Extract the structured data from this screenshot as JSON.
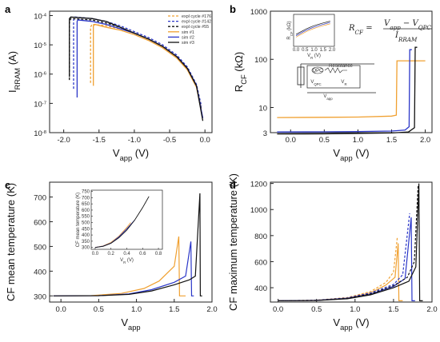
{
  "chart_data": [
    {
      "id": "a",
      "type": "line",
      "panel_label": "a",
      "xlabel": "V",
      "xlabel_sub": "app",
      "xlabel_unit": " (V)",
      "ylabel": "I",
      "ylabel_sub": "RRAM",
      "ylabel_unit": " (A)",
      "xlim": [
        -2.2,
        0.1
      ],
      "ylim_exp": [
        -8,
        -3.85
      ],
      "yscale": "log",
      "x_ticks": [
        -2.0,
        -1.5,
        -1.0,
        -0.5,
        0.0
      ],
      "x_tick_labels": [
        "-2.0",
        "-1.5",
        "-1.0",
        "-0.5",
        "0.0"
      ],
      "y_ticks_exp": [
        -8,
        -7,
        -6,
        -5,
        -4
      ],
      "y_tick_labels": [
        "10",
        "10",
        "10",
        "10",
        "10"
      ],
      "y_tick_exp_labels": [
        "-8",
        "-7",
        "-6",
        "-5",
        "-4"
      ],
      "legend": [
        {
          "label": "expl cycle #176",
          "color": "#f0a030",
          "dash": "3,2"
        },
        {
          "label": "expl cycle #142",
          "color": "#2a36c8",
          "dash": "3,2"
        },
        {
          "label": "expl cycle #55",
          "color": "#111111",
          "dash": "3,2"
        },
        {
          "label": "sim #1",
          "color": "#f0a030",
          "dash": ""
        },
        {
          "label": "sim #2",
          "color": "#2a36c8",
          "dash": ""
        },
        {
          "label": "sim #3",
          "color": "#111111",
          "dash": ""
        }
      ],
      "series": [
        {
          "color": "#f0a030",
          "dash": "3,2",
          "x": [
            -1.62,
            -1.62,
            -1.6,
            -1.4,
            -1.2,
            -1.0,
            -0.8,
            -0.6,
            -0.4,
            -0.25,
            -0.12,
            -0.05
          ],
          "y": [
            -6.3,
            -4.4,
            -4.3,
            -4.35,
            -4.45,
            -4.6,
            -4.8,
            -5.05,
            -5.4,
            -5.8,
            -6.4,
            -7.2
          ]
        },
        {
          "color": "#2a36c8",
          "dash": "3,2",
          "x": [
            -1.86,
            -1.86,
            -1.84,
            -1.6,
            -1.4,
            -1.2,
            -1.0,
            -0.8,
            -0.6,
            -0.4,
            -0.25,
            -0.12,
            -0.05
          ],
          "y": [
            -6.5,
            -4.15,
            -4.05,
            -4.1,
            -4.2,
            -4.35,
            -4.55,
            -4.75,
            -5.0,
            -5.35,
            -5.75,
            -6.35,
            -7.1
          ]
        },
        {
          "color": "#111111",
          "dash": "3,2",
          "x": [
            -1.92,
            -1.92,
            -1.9,
            -1.6,
            -1.4,
            -1.2,
            -1.0,
            -0.8,
            -0.6,
            -0.4,
            -0.25,
            -0.12,
            -0.05
          ],
          "y": [
            -6.2,
            -4.25,
            -4.1,
            -4.15,
            -4.25,
            -4.4,
            -4.6,
            -4.8,
            -5.05,
            -5.4,
            -5.8,
            -6.4,
            -7.2
          ]
        },
        {
          "color": "#f0a030",
          "dash": "",
          "x": [
            -1.58,
            -1.58,
            -1.56,
            -1.4,
            -1.2,
            -1.0,
            -0.8,
            -0.6,
            -0.4,
            -0.25,
            -0.12,
            -0.03
          ],
          "y": [
            -6.4,
            -4.35,
            -4.3,
            -4.4,
            -4.5,
            -4.65,
            -4.85,
            -5.1,
            -5.45,
            -5.85,
            -6.45,
            -7.5
          ]
        },
        {
          "color": "#2a36c8",
          "dash": "",
          "x": [
            -1.81,
            -1.81,
            -1.8,
            -1.6,
            -1.4,
            -1.2,
            -1.0,
            -0.8,
            -0.6,
            -0.4,
            -0.25,
            -0.12,
            -0.03
          ],
          "y": [
            -6.8,
            -4.2,
            -4.15,
            -4.2,
            -4.3,
            -4.45,
            -4.6,
            -4.8,
            -5.05,
            -5.4,
            -5.8,
            -6.4,
            -7.5
          ]
        },
        {
          "color": "#111111",
          "dash": "",
          "x": [
            -1.92,
            -1.92,
            -1.9,
            -1.6,
            -1.4,
            -1.2,
            -1.0,
            -0.8,
            -0.6,
            -0.4,
            -0.25,
            -0.12,
            -0.03
          ],
          "y": [
            -6.1,
            -4.1,
            -4.05,
            -4.1,
            -4.2,
            -4.4,
            -4.6,
            -4.8,
            -5.05,
            -5.4,
            -5.8,
            -6.4,
            -7.6
          ]
        }
      ]
    },
    {
      "id": "b",
      "type": "line",
      "panel_label": "b",
      "xlabel": "V",
      "xlabel_sub": "app",
      "xlabel_unit": " (V)",
      "ylabel": "R",
      "ylabel_sub": "CF",
      "ylabel_unit": " (kΩ)",
      "xlim": [
        -0.3,
        2.1
      ],
      "ylim_exp": [
        0.4771,
        3.0
      ],
      "yscale": "log",
      "x_ticks": [
        0.0,
        0.5,
        1.0,
        1.5,
        2.0
      ],
      "x_tick_labels": [
        "0.0",
        "0.5",
        "1.0",
        "1.5",
        "2.0"
      ],
      "y_ticks_exp": [
        0.4771,
        1,
        2,
        3
      ],
      "y_tick_labels": [
        "3",
        "10",
        "100",
        "1000"
      ],
      "formula_lhs": "R",
      "formula_lhs_sub": "CF",
      "formula_num": "V",
      "formula_num_sub1": "app",
      "formula_num_mid": " − V",
      "formula_num_sub2": "QPC",
      "formula_den": "I",
      "formula_den_sub": "RRAM",
      "circuit_labels": [
        "QPC",
        "Resistance",
        "V",
        "QPC",
        "V",
        "R",
        "V",
        "app"
      ],
      "inset": {
        "xlabel": "V",
        "xlabel_sub": "R",
        "xlabel_unit": " (V)",
        "ylabel": "R",
        "ylabel_sub": "CF",
        "ylabel_unit": " (kΩ)",
        "x_tick_labels": [
          "0.0",
          "0.5",
          "1.0",
          "1.5",
          "2.0"
        ]
      },
      "series": [
        {
          "color": "#f0a030",
          "dash": "",
          "x": [
            -0.2,
            0.5,
            1.0,
            1.5,
            1.57,
            1.58,
            2.0
          ],
          "y": [
            0.79,
            0.795,
            0.8,
            0.82,
            0.84,
            1.97,
            1.97
          ]
        },
        {
          "color": "#2a36c8",
          "dash": "",
          "x": [
            -0.2,
            0.5,
            1.0,
            1.5,
            1.7,
            1.76,
            1.77,
            1.8
          ],
          "y": [
            0.49,
            0.493,
            0.5,
            0.51,
            0.53,
            0.6,
            2.2,
            2.2
          ]
        },
        {
          "color": "#111111",
          "dash": "",
          "x": [
            -0.2,
            0.5,
            1.0,
            1.5,
            1.75,
            1.84,
            1.85,
            1.88
          ],
          "y": [
            0.45,
            0.453,
            0.46,
            0.47,
            0.49,
            0.58,
            2.25,
            2.25
          ]
        }
      ]
    },
    {
      "id": "c",
      "type": "line",
      "panel_label": "c",
      "xlabel": "V",
      "xlabel_sub": "app",
      "xlabel_unit": "",
      "ylabel": "CF mean temperature (K)",
      "xlim": [
        -0.15,
        2.0
      ],
      "ylim": [
        275,
        760
      ],
      "x_ticks": [
        0.0,
        0.5,
        1.0,
        1.5,
        2.0
      ],
      "x_tick_labels": [
        "0.0",
        "0.5",
        "1.0",
        "1.5",
        "2.0"
      ],
      "y_ticks": [
        300,
        400,
        500,
        600,
        700
      ],
      "y_tick_labels": [
        "300",
        "400",
        "500",
        "600",
        "700"
      ],
      "inset": {
        "ylabel": "CF mean temperature (K)",
        "xlabel": "V",
        "xlabel_sub": "R",
        "xlabel_unit": " (V)",
        "xlim": [
          -0.05,
          0.85
        ],
        "ylim": [
          285,
          760
        ],
        "x_ticks": [
          0.0,
          0.2,
          0.4,
          0.6,
          0.8
        ],
        "x_tick_labels": [
          "0.0",
          "0.2",
          "0.4",
          "0.6",
          "0.8"
        ],
        "y_ticks": [
          300,
          350,
          400,
          450,
          500,
          550,
          600,
          650,
          700,
          750
        ],
        "y_tick_labels": [
          "300",
          "350",
          "400",
          "450",
          "500",
          "550",
          "600",
          "650",
          "700",
          "750"
        ],
        "series": [
          {
            "color": "#f0a030",
            "x": [
              0.0,
              0.1,
              0.2,
              0.3,
              0.4,
              0.45
            ],
            "y": [
              300,
              312,
              340,
              390,
              460,
              500
            ]
          },
          {
            "color": "#2a36c8",
            "x": [
              0.0,
              0.1,
              0.2,
              0.3,
              0.4,
              0.5
            ],
            "y": [
              300,
              310,
              335,
              385,
              450,
              520
            ]
          },
          {
            "color": "#111111",
            "x": [
              0.0,
              0.1,
              0.2,
              0.3,
              0.4,
              0.5,
              0.6,
              0.68
            ],
            "y": [
              300,
              309,
              333,
              378,
              440,
              520,
              620,
              710
            ]
          }
        ]
      },
      "series": [
        {
          "color": "#f0a030",
          "dash": "",
          "x": [
            -0.1,
            0.4,
            0.8,
            1.1,
            1.3,
            1.5,
            1.56,
            1.57,
            1.6,
            1.65
          ],
          "y": [
            300,
            301,
            310,
            330,
            360,
            420,
            540,
            300,
            300,
            300
          ]
        },
        {
          "color": "#2a36c8",
          "dash": "",
          "x": [
            -0.1,
            0.5,
            0.9,
            1.2,
            1.5,
            1.65,
            1.72,
            1.73,
            1.76
          ],
          "y": [
            300,
            301,
            308,
            325,
            355,
            380,
            520,
            300,
            300
          ]
        },
        {
          "color": "#111111",
          "dash": "",
          "x": [
            -0.1,
            0.5,
            0.9,
            1.2,
            1.5,
            1.7,
            1.78,
            1.84,
            1.845,
            1.87
          ],
          "y": [
            300,
            301,
            306,
            320,
            345,
            365,
            380,
            715,
            300,
            300
          ]
        }
      ]
    },
    {
      "id": "d",
      "type": "line",
      "panel_label": "d",
      "xlabel": "V",
      "xlabel_sub": "app",
      "xlabel_unit": " (V)",
      "ylabel": "CF maximum temperature (K)",
      "xlim": [
        -0.1,
        2.0
      ],
      "ylim": [
        290,
        1210
      ],
      "x_ticks": [
        0.0,
        0.5,
        1.0,
        1.5,
        2.0
      ],
      "x_tick_labels": [
        "0.0",
        "0.5",
        "1.0",
        "1.5",
        "2.0"
      ],
      "y_ticks": [
        400,
        600,
        800,
        1000,
        1200
      ],
      "y_tick_labels": [
        "400",
        "600",
        "800",
        "1000",
        "1200"
      ],
      "series": [
        {
          "color": "#f0a030",
          "dash": "",
          "x": [
            0.0,
            0.5,
            0.9,
            1.2,
            1.4,
            1.52,
            1.56,
            1.57,
            1.62
          ],
          "y": [
            300,
            303,
            320,
            360,
            420,
            480,
            740,
            300,
            300
          ]
        },
        {
          "color": "#2a36c8",
          "dash": "",
          "x": [
            0.0,
            0.5,
            0.9,
            1.2,
            1.5,
            1.65,
            1.73,
            1.74,
            1.78
          ],
          "y": [
            300,
            303,
            318,
            350,
            410,
            470,
            940,
            300,
            300
          ]
        },
        {
          "color": "#111111",
          "dash": "",
          "x": [
            0.0,
            0.5,
            0.9,
            1.2,
            1.5,
            1.7,
            1.79,
            1.83,
            1.84,
            1.88
          ],
          "y": [
            300,
            302,
            315,
            345,
            400,
            450,
            560,
            1200,
            300,
            300
          ]
        },
        {
          "color": "#f0a030",
          "dash": "3,2",
          "x": [
            0.0,
            0.5,
            0.9,
            1.2,
            1.4,
            1.5,
            1.55
          ],
          "y": [
            300,
            304,
            325,
            370,
            440,
            520,
            790
          ]
        },
        {
          "color": "#2a36c8",
          "dash": "3,2",
          "x": [
            0.0,
            0.5,
            0.9,
            1.2,
            1.5,
            1.62,
            1.71
          ],
          "y": [
            300,
            304,
            322,
            360,
            425,
            500,
            970
          ]
        },
        {
          "color": "#111111",
          "dash": "3,2",
          "x": [
            0.0,
            0.5,
            0.9,
            1.2,
            1.5,
            1.68,
            1.77,
            1.82
          ],
          "y": [
            300,
            302,
            318,
            352,
            415,
            480,
            600,
            1190
          ]
        }
      ]
    }
  ]
}
